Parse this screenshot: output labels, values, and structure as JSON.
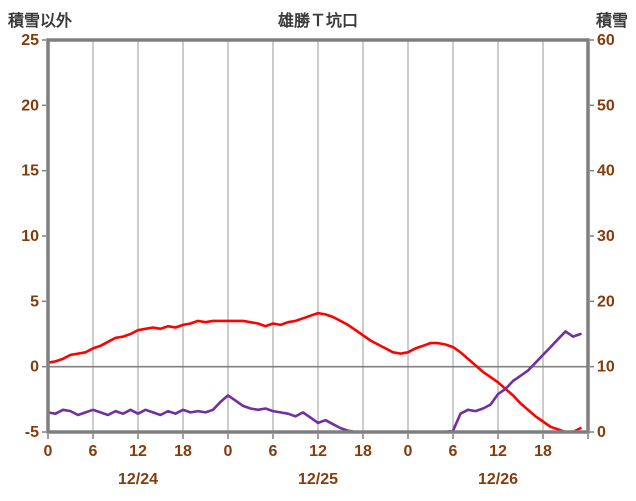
{
  "header": {
    "left_axis_title": "積雪以外",
    "title": "雄勝Ｔ坑口",
    "right_axis_title": "積雪"
  },
  "chart_data": {
    "type": "line",
    "title": "雄勝Ｔ坑口",
    "left_axis": {
      "label": "積雪以外",
      "min": -5,
      "max": 25,
      "ticks": [
        25,
        20,
        15,
        10,
        5,
        0,
        -5
      ]
    },
    "right_axis": {
      "label": "積雪",
      "min": 0,
      "max": 60,
      "ticks": [
        60,
        50,
        40,
        30,
        20,
        10,
        0
      ]
    },
    "x_axis": {
      "min_hour": 0,
      "max_hour": 72,
      "tick_interval": 6,
      "tick_labels": [
        "0",
        "6",
        "12",
        "18",
        "0",
        "6",
        "12",
        "18",
        "0",
        "6",
        "12",
        "18"
      ],
      "date_labels": [
        "12/24",
        "12/25",
        "12/26"
      ],
      "date_center_hours": [
        12,
        36,
        60
      ]
    },
    "zero_line_left_value": 0,
    "grid": {
      "vertical_every_hours": 6,
      "horizontal": false
    },
    "legend": "none",
    "colors": {
      "frame": "#7f7f7f",
      "grid": "#9a9a9a",
      "zero_line": "#808080",
      "tick_label": "#843c0c",
      "red_series": "#ff0000",
      "purple_series": "#7030a0"
    },
    "series": [
      {
        "name": "red-line",
        "axis": "left",
        "color": "#ff0000",
        "values": [
          0.3,
          0.4,
          0.6,
          0.9,
          1.0,
          1.1,
          1.4,
          1.6,
          1.9,
          2.2,
          2.3,
          2.5,
          2.8,
          2.9,
          3.0,
          2.9,
          3.1,
          3.0,
          3.2,
          3.3,
          3.5,
          3.4,
          3.5,
          3.5,
          3.5,
          3.5,
          3.5,
          3.4,
          3.3,
          3.1,
          3.3,
          3.2,
          3.4,
          3.5,
          3.7,
          3.9,
          4.1,
          4.0,
          3.8,
          3.5,
          3.2,
          2.8,
          2.4,
          2.0,
          1.7,
          1.4,
          1.1,
          1.0,
          1.1,
          1.4,
          1.6,
          1.8,
          1.8,
          1.7,
          1.5,
          1.1,
          0.6,
          0.1,
          -0.4,
          -0.8,
          -1.2,
          -1.7,
          -2.2,
          -2.8,
          -3.3,
          -3.8,
          -4.2,
          -4.6,
          -4.8,
          -5.0,
          -5.0,
          -4.7
        ]
      },
      {
        "name": "purple-line",
        "axis": "right",
        "color": "#7030a0",
        "values": [
          3.0,
          2.8,
          3.4,
          3.2,
          2.6,
          3.0,
          3.4,
          3.0,
          2.6,
          3.2,
          2.8,
          3.4,
          2.8,
          3.4,
          3.0,
          2.6,
          3.2,
          2.8,
          3.4,
          3.0,
          3.2,
          3.0,
          3.4,
          4.6,
          5.6,
          4.8,
          4.0,
          3.6,
          3.4,
          3.6,
          3.2,
          3.0,
          2.8,
          2.4,
          3.0,
          2.2,
          1.4,
          1.8,
          1.2,
          0.6,
          0.2,
          0.0,
          0.0,
          0.0,
          0.0,
          0.0,
          0.0,
          0.0,
          0.0,
          0.0,
          0.0,
          0.0,
          0.0,
          0.0,
          0.2,
          2.8,
          3.4,
          3.2,
          3.6,
          4.2,
          5.8,
          6.6,
          7.8,
          8.6,
          9.4,
          10.6,
          11.8,
          13.0,
          14.2,
          15.4,
          14.6,
          15.0
        ]
      }
    ]
  }
}
